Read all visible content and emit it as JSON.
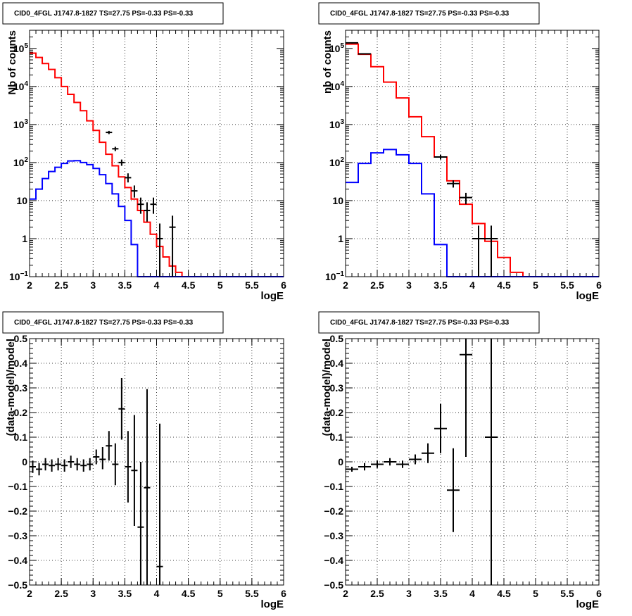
{
  "chart_data": [
    {
      "id": "top-left",
      "type": "line",
      "title": "CID0_4FGL J1747.8-1827 TS=27.75 PS=-0.33 PS=-0.33",
      "xlabel": "logE",
      "ylabel": "Nb of counts",
      "xlim": [
        2,
        6
      ],
      "ylim": [
        0.1,
        300000
      ],
      "yscale": "log",
      "grid": true,
      "x_ticks": [
        "2",
        "2.5",
        "3",
        "3.5",
        "4",
        "4.5",
        "5",
        "5.5",
        "6"
      ],
      "y_ticks": [
        {
          "value": 0.1,
          "base": "10",
          "exp": "−1"
        },
        {
          "value": 1,
          "base": "1",
          "exp": ""
        },
        {
          "value": 10,
          "base": "10",
          "exp": ""
        },
        {
          "value": 100,
          "base": "10",
          "exp": "2"
        },
        {
          "value": 1000,
          "base": "10",
          "exp": "3"
        },
        {
          "value": 10000,
          "base": "10",
          "exp": "4"
        },
        {
          "value": 100000,
          "base": "10",
          "exp": "5"
        }
      ],
      "bin_edges": [
        2.0,
        2.1,
        2.2,
        2.3,
        2.4,
        2.5,
        2.6,
        2.7,
        2.8,
        2.9,
        3.0,
        3.1,
        3.2,
        3.3,
        3.4,
        3.5,
        3.6,
        3.7,
        3.8,
        3.9,
        4.0,
        4.1,
        4.2,
        4.3,
        4.4,
        4.5,
        4.6,
        4.7,
        4.8,
        4.9,
        5.0,
        5.1,
        5.2,
        5.3,
        5.4,
        5.5,
        5.6,
        5.7,
        5.8,
        5.9,
        6.0
      ],
      "series": [
        {
          "color": "#ff0000",
          "kind": "step",
          "values": [
            75000,
            58000,
            40000,
            28000,
            17000,
            10000,
            6200,
            3800,
            2300,
            1250,
            700,
            340,
            165,
            82,
            42,
            22,
            11,
            5.5,
            2.7,
            1.3,
            0.62,
            0.33,
            0.19,
            0.13,
            0.1,
            0.1,
            0.1,
            0.1,
            0.1,
            0.1,
            0.1,
            0.1,
            0.1,
            0.1,
            0.1,
            0.1,
            0.1,
            0.1,
            0.1,
            0.1
          ]
        },
        {
          "color": "#0000ff",
          "kind": "step",
          "values": [
            11,
            20,
            38,
            58,
            75,
            95,
            110,
            112,
            100,
            88,
            70,
            48,
            28,
            15,
            7,
            3,
            0.7,
            0.1,
            0.1,
            0.1,
            0.1,
            0.1,
            0.1,
            0.1,
            0.1,
            0.1,
            0.1,
            0.1,
            0.1,
            0.1,
            0.1,
            0.1,
            0.1,
            0.1,
            0.1,
            0.1,
            0.1,
            0.1,
            0.1,
            0.1
          ]
        },
        {
          "color": "#000000",
          "kind": "errorbar",
          "points": [
            {
              "x": 3.25,
              "y": 620,
              "dx": 0.05,
              "lo": 560,
              "hi": 680
            },
            {
              "x": 3.35,
              "y": 230,
              "dx": 0.05,
              "lo": 200,
              "hi": 260
            },
            {
              "x": 3.45,
              "y": 100,
              "dx": 0.05,
              "lo": 82,
              "hi": 120
            },
            {
              "x": 3.55,
              "y": 40,
              "dx": 0.05,
              "lo": 30,
              "hi": 52
            },
            {
              "x": 3.65,
              "y": 18,
              "dx": 0.05,
              "lo": 12,
              "hi": 25
            },
            {
              "x": 3.75,
              "y": 8,
              "dx": 0.05,
              "lo": 4.5,
              "hi": 12
            },
            {
              "x": 3.85,
              "y": 5.5,
              "dx": 0.05,
              "lo": 2.8,
              "hi": 9
            },
            {
              "x": 3.95,
              "y": 8,
              "dx": 0.05,
              "lo": 4.5,
              "hi": 12
            },
            {
              "x": 4.05,
              "y": 1,
              "dx": 0.05,
              "lo": 0.1,
              "hi": 2.5
            },
            {
              "x": 4.25,
              "y": 2,
              "dx": 0.05,
              "lo": 0.1,
              "hi": 4
            }
          ]
        }
      ]
    },
    {
      "id": "top-right",
      "type": "line",
      "title": "CID0_4FGL J1747.8-1827 TS=27.75 PS=-0.33 PS=-0.33",
      "xlabel": "logE",
      "ylabel": "nb of counts",
      "xlim": [
        2,
        6
      ],
      "ylim": [
        0.1,
        300000
      ],
      "yscale": "log",
      "grid": true,
      "x_ticks": [
        "2",
        "2.5",
        "3",
        "3.5",
        "4",
        "4.5",
        "5",
        "5.5",
        "6"
      ],
      "y_ticks": [
        {
          "value": 0.1,
          "base": "10",
          "exp": "−1"
        },
        {
          "value": 1,
          "base": "1",
          "exp": ""
        },
        {
          "value": 10,
          "base": "10",
          "exp": ""
        },
        {
          "value": 100,
          "base": "10",
          "exp": "2"
        },
        {
          "value": 1000,
          "base": "10",
          "exp": "3"
        },
        {
          "value": 10000,
          "base": "10",
          "exp": "4"
        },
        {
          "value": 100000,
          "base": "10",
          "exp": "5"
        }
      ],
      "bin_edges": [
        2.0,
        2.2,
        2.4,
        2.6,
        2.8,
        3.0,
        3.2,
        3.4,
        3.6,
        3.8,
        4.0,
        4.2,
        4.4,
        4.6,
        4.8,
        5.0,
        5.2,
        5.4,
        5.6,
        5.8,
        6.0
      ],
      "series": [
        {
          "color": "#ff0000",
          "kind": "step",
          "values": [
            130000,
            70000,
            33000,
            13000,
            5000,
            1600,
            480,
            140,
            33,
            8,
            2.5,
            0.85,
            0.32,
            0.13,
            0.1,
            0.1,
            0.1,
            0.1,
            0.1,
            0.1
          ]
        },
        {
          "color": "#0000ff",
          "kind": "step",
          "values": [
            30,
            95,
            180,
            220,
            160,
            95,
            15,
            0.7,
            0.1,
            0.1,
            0.1,
            0.1,
            0.1,
            0.1,
            0.1,
            0.1,
            0.1,
            0.1,
            0.1,
            0.1
          ]
        },
        {
          "color": "#000000",
          "kind": "errorbar",
          "points": [
            {
              "x": 2.1,
              "y": 140000,
              "dx": 0.1,
              "lo": 135000,
              "hi": 145000
            },
            {
              "x": 2.3,
              "y": 72000,
              "dx": 0.1,
              "lo": 69000,
              "hi": 75000
            },
            {
              "x": 3.5,
              "y": 140,
              "dx": 0.1,
              "lo": 120,
              "hi": 160
            },
            {
              "x": 3.7,
              "y": 28,
              "dx": 0.1,
              "lo": 22,
              "hi": 34
            },
            {
              "x": 3.9,
              "y": 12,
              "dx": 0.1,
              "lo": 8,
              "hi": 16
            },
            {
              "x": 4.1,
              "y": 1,
              "dx": 0.1,
              "lo": 0.1,
              "hi": 2.2
            },
            {
              "x": 4.3,
              "y": 1,
              "dx": 0.1,
              "lo": 0.1,
              "hi": 2.2
            }
          ]
        }
      ]
    },
    {
      "id": "bottom-left",
      "type": "scatter",
      "title": "CID0_4FGL J1747.8-1827 TS=27.75 PS=-0.33 PS=-0.33",
      "xlabel": "logE",
      "ylabel": "(data-model)/model",
      "xlim": [
        2,
        6
      ],
      "ylim": [
        -0.5,
        0.5
      ],
      "yscale": "linear",
      "grid": true,
      "x_ticks": [
        "2",
        "2.5",
        "3",
        "3.5",
        "4",
        "4.5",
        "5",
        "5.5",
        "6"
      ],
      "y_ticks": [
        {
          "value": -0.5,
          "base": "−0.5",
          "exp": ""
        },
        {
          "value": -0.4,
          "base": "−0.4",
          "exp": ""
        },
        {
          "value": -0.3,
          "base": "−0.3",
          "exp": ""
        },
        {
          "value": -0.2,
          "base": "−0.2",
          "exp": ""
        },
        {
          "value": -0.1,
          "base": "−0.1",
          "exp": ""
        },
        {
          "value": 0,
          "base": "0",
          "exp": ""
        },
        {
          "value": 0.1,
          "base": "0.1",
          "exp": ""
        },
        {
          "value": 0.2,
          "base": "0.2",
          "exp": ""
        },
        {
          "value": 0.3,
          "base": "0.3",
          "exp": ""
        },
        {
          "value": 0.4,
          "base": "0.4",
          "exp": ""
        },
        {
          "value": 0.5,
          "base": "0.5",
          "exp": ""
        }
      ],
      "series": [
        {
          "color": "#000000",
          "kind": "errorbar",
          "points": [
            {
              "x": 2.05,
              "y": -0.02,
              "dx": 0.05,
              "lo": -0.045,
              "hi": 0.005
            },
            {
              "x": 2.15,
              "y": -0.03,
              "dx": 0.05,
              "lo": -0.055,
              "hi": -0.005
            },
            {
              "x": 2.25,
              "y": -0.01,
              "dx": 0.05,
              "lo": -0.035,
              "hi": 0.015
            },
            {
              "x": 2.35,
              "y": -0.015,
              "dx": 0.05,
              "lo": -0.04,
              "hi": 0.01
            },
            {
              "x": 2.45,
              "y": -0.01,
              "dx": 0.05,
              "lo": -0.035,
              "hi": 0.015
            },
            {
              "x": 2.55,
              "y": -0.015,
              "dx": 0.05,
              "lo": -0.04,
              "hi": 0.01
            },
            {
              "x": 2.65,
              "y": 0.0,
              "dx": 0.05,
              "lo": -0.025,
              "hi": 0.025
            },
            {
              "x": 2.75,
              "y": -0.01,
              "dx": 0.05,
              "lo": -0.035,
              "hi": 0.015
            },
            {
              "x": 2.85,
              "y": -0.015,
              "dx": 0.05,
              "lo": -0.04,
              "hi": 0.01
            },
            {
              "x": 2.95,
              "y": -0.01,
              "dx": 0.05,
              "lo": -0.035,
              "hi": 0.015
            },
            {
              "x": 3.05,
              "y": 0.02,
              "dx": 0.05,
              "lo": -0.01,
              "hi": 0.05
            },
            {
              "x": 3.15,
              "y": 0.01,
              "dx": 0.05,
              "lo": -0.03,
              "hi": 0.06
            },
            {
              "x": 3.25,
              "y": 0.065,
              "dx": 0.05,
              "lo": 0.005,
              "hi": 0.125
            },
            {
              "x": 3.35,
              "y": -0.01,
              "dx": 0.05,
              "lo": -0.095,
              "hi": 0.075
            },
            {
              "x": 3.45,
              "y": 0.215,
              "dx": 0.05,
              "lo": 0.09,
              "hi": 0.34
            },
            {
              "x": 3.55,
              "y": -0.02,
              "dx": 0.05,
              "lo": -0.165,
              "hi": 0.125
            },
            {
              "x": 3.65,
              "y": -0.035,
              "dx": 0.05,
              "lo": -0.26,
              "hi": 0.19
            },
            {
              "x": 3.75,
              "y": -0.265,
              "dx": 0.05,
              "lo": -0.5,
              "hi": 0.0
            },
            {
              "x": 3.85,
              "y": -0.105,
              "dx": 0.05,
              "lo": -0.5,
              "hi": 0.295
            },
            {
              "x": 4.05,
              "y": -0.425,
              "dx": 0.05,
              "lo": -0.5,
              "hi": 0.155
            }
          ]
        }
      ]
    },
    {
      "id": "bottom-right",
      "type": "scatter",
      "title": "CID0_4FGL J1747.8-1827 TS=27.75 PS=-0.33 PS=-0.33",
      "xlabel": "logE",
      "ylabel": "(data-model)/model",
      "xlim": [
        2,
        6
      ],
      "ylim": [
        -0.5,
        0.5
      ],
      "yscale": "linear",
      "grid": true,
      "x_ticks": [
        "2",
        "2.5",
        "3",
        "3.5",
        "4",
        "4.5",
        "5",
        "5.5",
        "6"
      ],
      "y_ticks": [
        {
          "value": -0.5,
          "base": "−0.5",
          "exp": ""
        },
        {
          "value": -0.4,
          "base": "−0.4",
          "exp": ""
        },
        {
          "value": -0.3,
          "base": "−0.3",
          "exp": ""
        },
        {
          "value": -0.2,
          "base": "−0.2",
          "exp": ""
        },
        {
          "value": -0.1,
          "base": "−0.1",
          "exp": ""
        },
        {
          "value": 0,
          "base": "0",
          "exp": ""
        },
        {
          "value": 0.1,
          "base": "0.1",
          "exp": ""
        },
        {
          "value": 0.2,
          "base": "0.2",
          "exp": ""
        },
        {
          "value": 0.3,
          "base": "0.3",
          "exp": ""
        },
        {
          "value": 0.4,
          "base": "0.4",
          "exp": ""
        },
        {
          "value": 0.5,
          "base": "0.5",
          "exp": ""
        }
      ],
      "series": [
        {
          "color": "#000000",
          "kind": "errorbar",
          "points": [
            {
              "x": 2.1,
              "y": -0.03,
              "dx": 0.1,
              "lo": -0.04,
              "hi": -0.02
            },
            {
              "x": 2.3,
              "y": -0.02,
              "dx": 0.1,
              "lo": -0.035,
              "hi": -0.005
            },
            {
              "x": 2.5,
              "y": -0.01,
              "dx": 0.1,
              "lo": -0.025,
              "hi": 0.005
            },
            {
              "x": 2.7,
              "y": 0.0,
              "dx": 0.1,
              "lo": -0.015,
              "hi": 0.015
            },
            {
              "x": 2.9,
              "y": -0.01,
              "dx": 0.1,
              "lo": -0.025,
              "hi": 0.005
            },
            {
              "x": 3.1,
              "y": 0.01,
              "dx": 0.1,
              "lo": -0.01,
              "hi": 0.03
            },
            {
              "x": 3.3,
              "y": 0.035,
              "dx": 0.1,
              "lo": -0.005,
              "hi": 0.075
            },
            {
              "x": 3.5,
              "y": 0.135,
              "dx": 0.1,
              "lo": 0.035,
              "hi": 0.235
            },
            {
              "x": 3.7,
              "y": -0.115,
              "dx": 0.1,
              "lo": -0.285,
              "hi": 0.055
            },
            {
              "x": 3.9,
              "y": 0.435,
              "dx": 0.1,
              "lo": 0.02,
              "hi": 0.5
            },
            {
              "x": 4.3,
              "y": 0.1,
              "dx": 0.1,
              "lo": -0.5,
              "hi": 0.5
            }
          ]
        }
      ]
    }
  ]
}
